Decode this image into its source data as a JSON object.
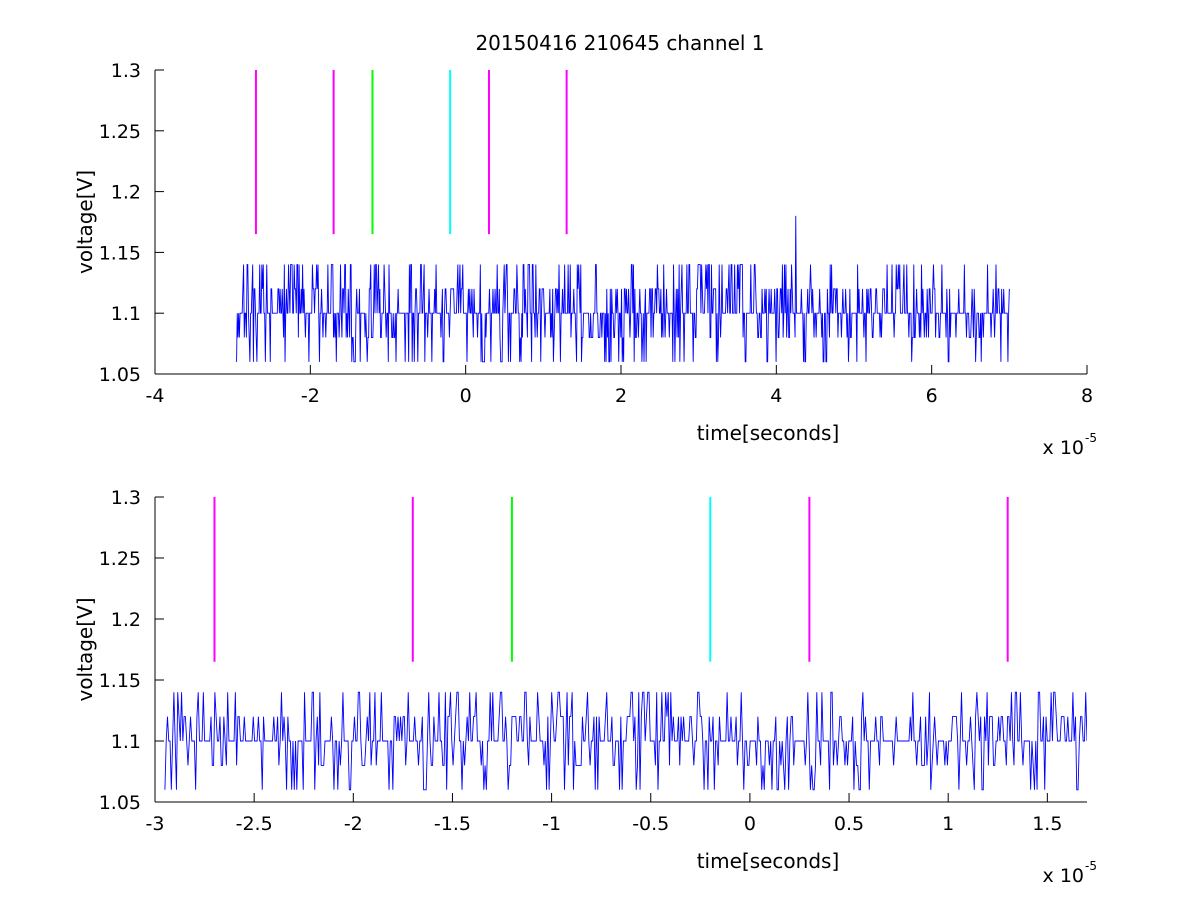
{
  "figure": {
    "title": "20150416 210645 channel 1"
  },
  "chart_data": [
    {
      "type": "line",
      "title": "20150416 210645 channel 1",
      "xlabel": "time[seconds]",
      "ylabel": "voltage[V]",
      "x_multiplier": "x 10",
      "x_multiplier_exp": "-5",
      "xlim": [
        -4,
        8
      ],
      "ylim": [
        1.05,
        1.3
      ],
      "xticks": [
        -4,
        -2,
        0,
        2,
        4,
        6,
        8
      ],
      "xtick_labels": [
        "-4",
        "-2",
        "0",
        "2",
        "4",
        "6",
        "8"
      ],
      "yticks": [
        1.05,
        1.1,
        1.15,
        1.2,
        1.25,
        1.3
      ],
      "ytick_labels": [
        "1.05",
        "1.1",
        "1.15",
        "1.2",
        "1.25",
        "1.3"
      ],
      "grid": false,
      "series": [
        {
          "color": "#0000ff",
          "x_range": [
            -2.95,
            7.0
          ],
          "levels": [
            1.06,
            1.08,
            1.1,
            1.12,
            1.14
          ],
          "spike": {
            "x": 4.25,
            "y": 1.18
          }
        }
      ],
      "markers": [
        {
          "x": -2.7,
          "y_from": 1.165,
          "y_to": 1.3,
          "color": "#ff00ff"
        },
        {
          "x": -1.7,
          "y_from": 1.165,
          "y_to": 1.3,
          "color": "#ff00ff"
        },
        {
          "x": -1.2,
          "y_from": 1.165,
          "y_to": 1.3,
          "color": "#00ff00"
        },
        {
          "x": -0.2,
          "y_from": 1.165,
          "y_to": 1.3,
          "color": "#00ffff"
        },
        {
          "x": 0.3,
          "y_from": 1.165,
          "y_to": 1.3,
          "color": "#ff00ff"
        },
        {
          "x": 1.3,
          "y_from": 1.165,
          "y_to": 1.3,
          "color": "#ff00ff"
        }
      ]
    },
    {
      "type": "line",
      "title": "",
      "xlabel": "time[seconds]",
      "ylabel": "voltage[V]",
      "x_multiplier": "x 10",
      "x_multiplier_exp": "-5",
      "xlim": [
        -3.0,
        1.7
      ],
      "ylim": [
        1.05,
        1.3
      ],
      "xticks": [
        -3,
        -2.5,
        -2,
        -1.5,
        -1,
        -0.5,
        0,
        0.5,
        1,
        1.5
      ],
      "xtick_labels": [
        "-3",
        "-2.5",
        "-2",
        "-1.5",
        "-1",
        "-0.5",
        "0",
        "0.5",
        "1",
        "1.5"
      ],
      "yticks": [
        1.05,
        1.1,
        1.15,
        1.2,
        1.25,
        1.3
      ],
      "ytick_labels": [
        "1.05",
        "1.1",
        "1.15",
        "1.2",
        "1.25",
        "1.3"
      ],
      "grid": false,
      "series": [
        {
          "color": "#0000ff",
          "x_range": [
            -2.95,
            1.7
          ],
          "levels": [
            1.06,
            1.08,
            1.1,
            1.12,
            1.14
          ]
        }
      ],
      "markers": [
        {
          "x": -2.7,
          "y_from": 1.165,
          "y_to": 1.3,
          "color": "#ff00ff"
        },
        {
          "x": -1.7,
          "y_from": 1.165,
          "y_to": 1.3,
          "color": "#ff00ff"
        },
        {
          "x": -1.2,
          "y_from": 1.165,
          "y_to": 1.3,
          "color": "#00ff00"
        },
        {
          "x": -0.2,
          "y_from": 1.165,
          "y_to": 1.3,
          "color": "#00ffff"
        },
        {
          "x": 0.3,
          "y_from": 1.165,
          "y_to": 1.3,
          "color": "#ff00ff"
        },
        {
          "x": 1.3,
          "y_from": 1.165,
          "y_to": 1.3,
          "color": "#ff00ff"
        }
      ]
    }
  ]
}
